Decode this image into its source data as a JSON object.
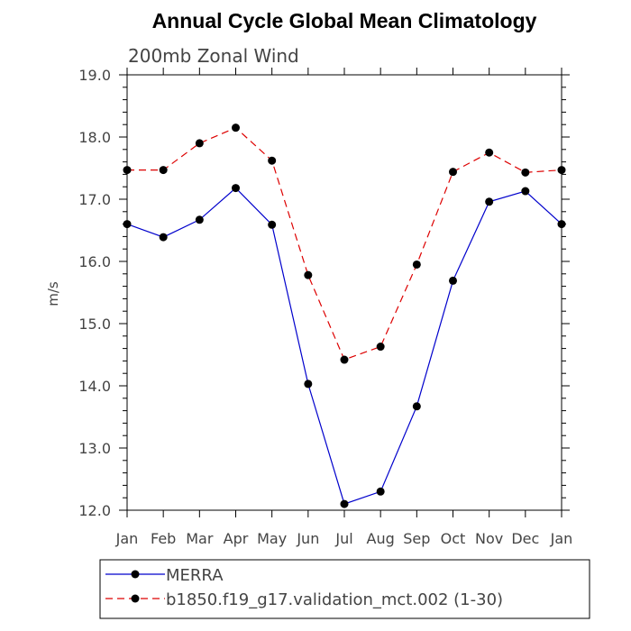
{
  "chart_data": {
    "type": "line",
    "title": "Annual Cycle Global Mean Climatology",
    "subtitle": "200mb Zonal Wind",
    "xlabel": "",
    "ylabel": "m/s",
    "categories": [
      "Jan",
      "Feb",
      "Mar",
      "Apr",
      "May",
      "Jun",
      "Jul",
      "Aug",
      "Sep",
      "Oct",
      "Nov",
      "Dec",
      "Jan"
    ],
    "yticks": [
      12.0,
      13.0,
      14.0,
      15.0,
      16.0,
      17.0,
      18.0,
      19.0
    ],
    "ylim": [
      12.0,
      19.0
    ],
    "series": [
      {
        "name": "MERRA",
        "color": "#0000cc",
        "dash": "solid",
        "values": [
          16.6,
          16.39,
          16.67,
          17.18,
          16.59,
          14.03,
          12.1,
          12.3,
          13.67,
          15.69,
          16.96,
          17.13,
          16.6
        ]
      },
      {
        "name": "b1850.f19_g17.validation_mct.002 (1-30)",
        "color": "#dd0000",
        "dash": "dashed",
        "values": [
          17.47,
          17.47,
          17.9,
          18.15,
          17.62,
          15.78,
          14.42,
          14.63,
          15.95,
          17.44,
          17.75,
          17.43,
          17.47
        ]
      }
    ],
    "legend_position": "bottom"
  }
}
